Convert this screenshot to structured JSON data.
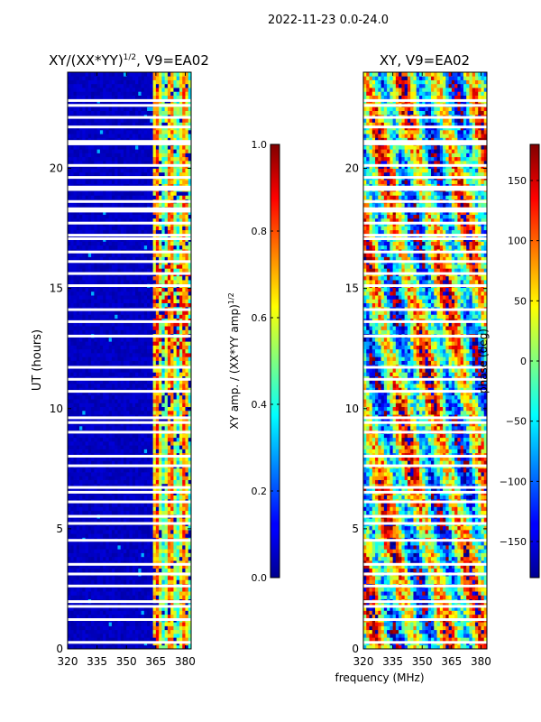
{
  "suptitle": "2022-11-23 0.0-24.0",
  "shared_xlabel": "frequency (MHz)",
  "chart_data": [
    {
      "type": "heatmap",
      "title_main": "XY/(XX*YY)",
      "title_sup": "1/2",
      "title_rest": ", V9=EA02",
      "ylabel": "UT (hours)",
      "xlim": [
        320,
        383
      ],
      "ylim": [
        0,
        24
      ],
      "xticks": [
        320,
        335,
        350,
        365,
        380
      ],
      "yticks": [
        0,
        5,
        10,
        15,
        20
      ],
      "colorbar": {
        "label_main": "XY amp. / (XX*YY amp)",
        "label_sup": "1/2",
        "range": [
          0.0,
          1.0
        ],
        "ticks": [
          "0.0",
          "0.2",
          "0.4",
          "0.6",
          "0.8",
          "1.0"
        ],
        "colormap": "jet"
      },
      "bands": [
        {
          "freq": [
            320,
            363
          ],
          "level": "low (~0.0-0.1)"
        },
        {
          "freq": [
            363,
            383
          ],
          "level": "high (~0.3-0.9)"
        }
      ]
    },
    {
      "type": "heatmap",
      "title": "XY, V9=EA02",
      "xlim": [
        320,
        383
      ],
      "ylim": [
        0,
        24
      ],
      "xticks": [
        320,
        335,
        350,
        365,
        380
      ],
      "yticks": [
        0,
        5,
        10,
        15,
        20
      ],
      "colorbar": {
        "label": "phase (deg)",
        "range": [
          -180,
          180
        ],
        "ticks": [
          "−150",
          "−100",
          "−50",
          "0",
          "50",
          "100",
          "150"
        ],
        "colormap": "jet"
      }
    }
  ]
}
